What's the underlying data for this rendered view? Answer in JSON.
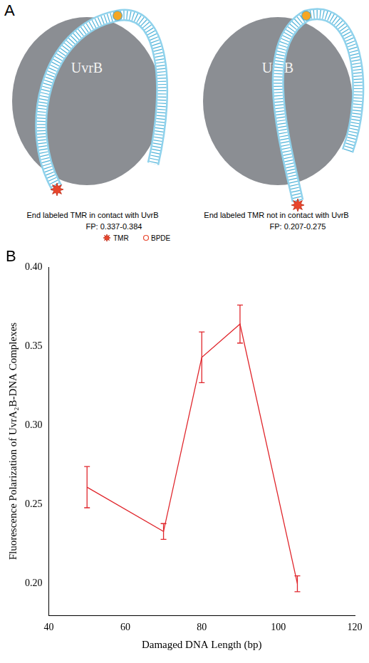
{
  "panel_a": {
    "letter": "A",
    "object_label": "UvrB",
    "diagrams": [
      {
        "caption": "End labeled TMR in contact with UvrB",
        "fp": "FP: 0.337-0.384"
      },
      {
        "caption": "End labeled TMR not in contact with UvrB",
        "fp": "FP: 0.207-0.275"
      }
    ],
    "key": [
      "TMR",
      "BPDE"
    ]
  },
  "chart_data": {
    "panel": "B",
    "type": "line",
    "x_label": "Damaged DNA Length (bp)",
    "y_label": "Fluorescence Polarization of UvrA₂B-DNA Complexes",
    "x": [
      50,
      70,
      80,
      90,
      105
    ],
    "values": [
      0.261,
      0.233,
      0.343,
      0.364,
      0.2
    ],
    "errors": [
      0.013,
      0.005,
      0.016,
      0.012,
      0.005
    ],
    "color": "#e0262c",
    "marker": "none",
    "grid": false,
    "xlim": [
      40,
      120
    ],
    "xticks": [
      40,
      60,
      80,
      100,
      120
    ],
    "ylim": [
      0.18,
      0.4
    ],
    "yticks": [
      {
        "value": 0.2,
        "label": "0.20"
      },
      0.25,
      {
        "value": 0.3,
        "label": "0.30"
      },
      0.35,
      {
        "value": 0.4,
        "label": "0.40"
      }
    ]
  }
}
